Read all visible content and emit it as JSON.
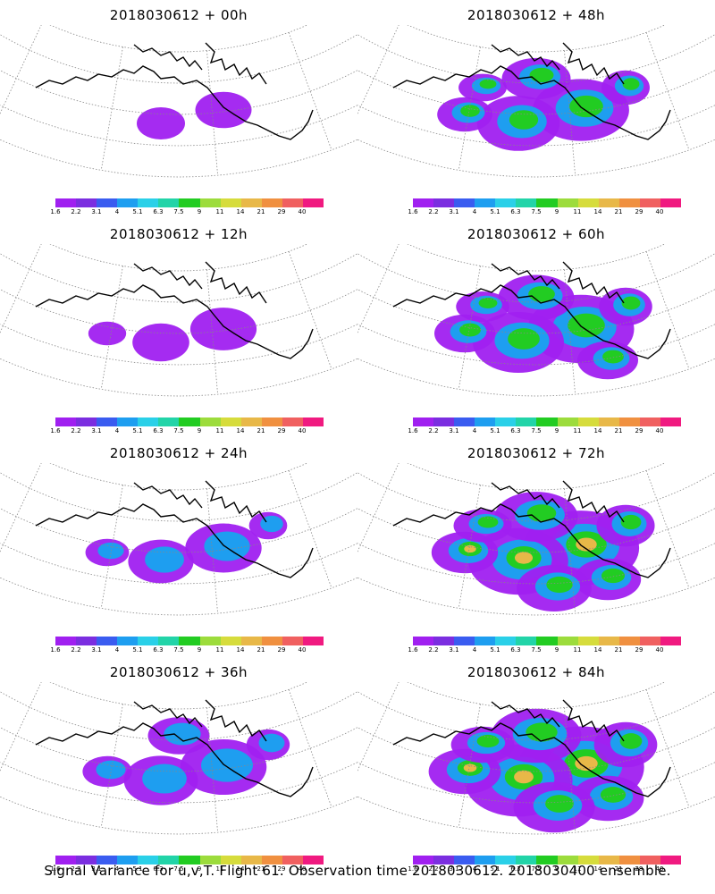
{
  "panels": [
    {
      "title": "2018030612 + 00h",
      "intensity": 0
    },
    {
      "title": "2018030612 + 48h",
      "intensity": 4
    },
    {
      "title": "2018030612 + 12h",
      "intensity": 1
    },
    {
      "title": "2018030612 + 60h",
      "intensity": 5
    },
    {
      "title": "2018030612 + 24h",
      "intensity": 2
    },
    {
      "title": "2018030612 + 72h",
      "intensity": 6
    },
    {
      "title": "2018030612 + 36h",
      "intensity": 3
    },
    {
      "title": "2018030612 + 84h",
      "intensity": 7
    }
  ],
  "colorbar": {
    "labels": [
      "1.6",
      "2.2",
      "3.1",
      "4",
      "5.1",
      "6.3",
      "7.5",
      "9",
      "11",
      "14",
      "21",
      "29",
      "40"
    ],
    "colors": [
      "#a020f0",
      "#7b2ee0",
      "#3a5cf0",
      "#1e9ef0",
      "#2ad0e8",
      "#22d4a8",
      "#22cc22",
      "#9cdc3c",
      "#d6dc3c",
      "#e8b848",
      "#f09040",
      "#f06060",
      "#f01a80"
    ]
  },
  "footer": "Signal Variance for u,v,T. Flight 61. Observation time 2018030612. 2018030400 ensemble."
}
